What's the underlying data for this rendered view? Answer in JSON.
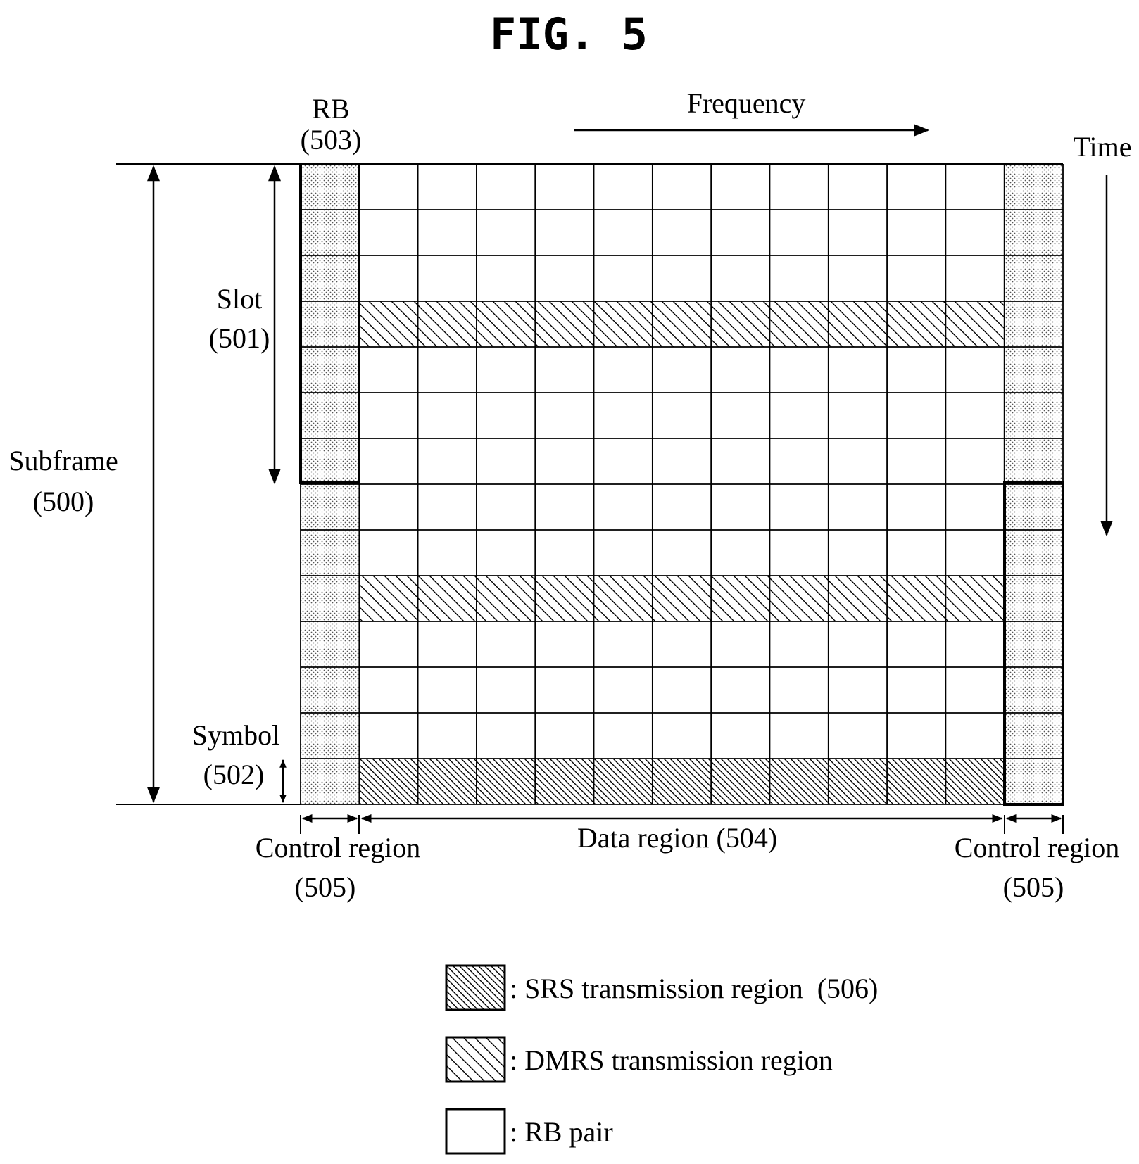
{
  "figure_title": "FIG. 5",
  "labels": {
    "frequency": "Frequency",
    "time": "Time",
    "rb": "RB",
    "rb_num": "(503)",
    "slot": "Slot",
    "slot_num": "(501)",
    "subframe": "Subframe",
    "subframe_num": "(500)",
    "symbol": "Symbol",
    "symbol_num": "(502)",
    "control_left": "Control region",
    "control_left_num": "(505)",
    "data_region": "Data region (504)",
    "control_right": "Control region",
    "control_right_num": "(505)"
  },
  "legend": [
    {
      "label": ": SRS transmission region  (506)",
      "pattern": "srs-hatch"
    },
    {
      "label": ": DMRS transmission region",
      "pattern": "dmrs-hatch"
    },
    {
      "label": ": RB pair",
      "pattern": "empty"
    }
  ],
  "grid": {
    "subcarrier_columns": 13,
    "symbol_rows": 14,
    "dmrs_rows": [
      3,
      9
    ],
    "srs_row": 13
  },
  "colors": {
    "line": "#000000",
    "background": "#ffffff",
    "control_dots": "#555555"
  }
}
